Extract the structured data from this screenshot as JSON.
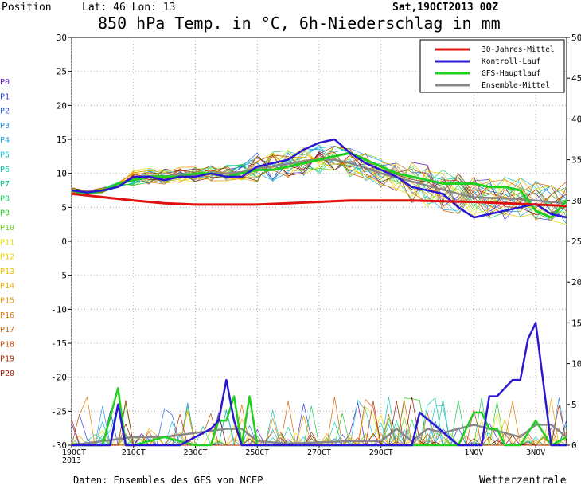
{
  "header": {
    "position_label": "Position",
    "lat_lon": "Lat: 46 Lon: 13",
    "run_date": "Sat,19OCT2013 00Z",
    "title": "850 hPa Temp. in °C, 6h-Niederschlag in mm"
  },
  "footer": {
    "source": "Daten: Ensembles des GFS von NCEP",
    "brand": "Wetterzentrale"
  },
  "member_labels": [
    {
      "label": "P0",
      "color": "#5a18c8"
    },
    {
      "label": "P1",
      "color": "#2f3fe0"
    },
    {
      "label": "P2",
      "color": "#2a60e6"
    },
    {
      "label": "P3",
      "color": "#2a8ee8"
    },
    {
      "label": "P4",
      "color": "#1ea8e0"
    },
    {
      "label": "P5",
      "color": "#16c0d8"
    },
    {
      "label": "P6",
      "color": "#12c8b0"
    },
    {
      "label": "P7",
      "color": "#12c890"
    },
    {
      "label": "P8",
      "color": "#1ccc5c"
    },
    {
      "label": "P9",
      "color": "#28c828"
    },
    {
      "label": "P10",
      "color": "#6ed21c"
    },
    {
      "label": "P11",
      "color": "#e8e000"
    },
    {
      "label": "P12",
      "color": "#f0d000"
    },
    {
      "label": "P13",
      "color": "#f0c000"
    },
    {
      "label": "P14",
      "color": "#f0ac00"
    },
    {
      "label": "P15",
      "color": "#ec9800"
    },
    {
      "label": "P16",
      "color": "#e07e00"
    },
    {
      "label": "P17",
      "color": "#d86400"
    },
    {
      "label": "P18",
      "color": "#c84600"
    },
    {
      "label": "P19",
      "color": "#b02c00"
    },
    {
      "label": "P20",
      "color": "#981800"
    }
  ],
  "chart_data": {
    "type": "line",
    "x_ticks": [
      "19OCT\n2013",
      "21OCT",
      "23OCT",
      "25OCT",
      "27OCT",
      "29OCT",
      "1NOV",
      "3NOV"
    ],
    "x_tick_hours": [
      0,
      48,
      96,
      144,
      192,
      240,
      312,
      360
    ],
    "x_range_hours": [
      0,
      384
    ],
    "y_left": {
      "range": [
        -30,
        30
      ],
      "ticks": [
        -30,
        -25,
        -20,
        -15,
        -10,
        -5,
        0,
        5,
        10,
        15,
        20,
        25,
        30
      ],
      "unit": "°C"
    },
    "y_right": {
      "range": [
        0,
        50
      ],
      "ticks": [
        0,
        5,
        10,
        15,
        20,
        25,
        30,
        35,
        40,
        45,
        50
      ],
      "unit": "mm"
    },
    "grid": true,
    "legend_position": "top-right",
    "legend": [
      {
        "label": "30-Jahres-Mittel",
        "color": "#e01010"
      },
      {
        "label": "Kontroll-Lauf",
        "color": "#2a18d0"
      },
      {
        "label": "GFS-Hauptlauf",
        "color": "#20d020"
      },
      {
        "label": "Ensemble-Mittel",
        "color": "#888888"
      }
    ],
    "temperature": {
      "climate_mean": {
        "x": [
          0,
          24,
          48,
          72,
          96,
          120,
          144,
          168,
          192,
          216,
          240,
          264,
          288,
          312,
          336,
          360,
          384
        ],
        "y": [
          7,
          6.5,
          6,
          5.6,
          5.4,
          5.4,
          5.4,
          5.6,
          5.8,
          6.0,
          6.0,
          6.0,
          5.9,
          5.8,
          5.6,
          5.4,
          5.2
        ]
      },
      "control": {
        "x": [
          0,
          12,
          24,
          36,
          48,
          60,
          72,
          84,
          96,
          108,
          120,
          132,
          144,
          156,
          168,
          180,
          192,
          204,
          216,
          228,
          240,
          252,
          264,
          276,
          288,
          300,
          312,
          324,
          336,
          348,
          360,
          372,
          384
        ],
        "y": [
          7.5,
          7.2,
          7.5,
          8,
          9.5,
          9.5,
          9,
          9.5,
          9.5,
          10,
          9.5,
          9.5,
          11,
          11.5,
          12,
          13.5,
          14.5,
          15,
          13,
          11.5,
          10.5,
          9.5,
          8,
          7.5,
          7,
          5,
          3.5,
          4,
          4.5,
          5,
          5.5,
          4,
          3.5
        ]
      },
      "main_run": {
        "x": [
          0,
          12,
          24,
          36,
          48,
          60,
          72,
          84,
          96,
          108,
          120,
          132,
          144,
          156,
          168,
          180,
          192,
          204,
          216,
          228,
          240,
          252,
          264,
          276,
          288,
          300,
          312,
          324,
          336,
          348,
          360,
          372,
          384
        ],
        "y": [
          7.5,
          7.0,
          7.5,
          8.5,
          9,
          9.5,
          9.5,
          9.5,
          10,
          10,
          9.5,
          10,
          10.5,
          10.5,
          11,
          11.5,
          12,
          12.5,
          13,
          12,
          11,
          10,
          9.5,
          9,
          8.5,
          8.5,
          8.5,
          8,
          8,
          7.5,
          4.5,
          3.5,
          6
        ]
      },
      "ensemble_mean": {
        "x": [
          0,
          12,
          24,
          36,
          48,
          60,
          72,
          84,
          96,
          108,
          120,
          132,
          144,
          156,
          168,
          180,
          192,
          204,
          216,
          228,
          240,
          252,
          264,
          276,
          288,
          300,
          312,
          324,
          336,
          348,
          360,
          372,
          384
        ],
        "y": [
          7.5,
          7.3,
          7.5,
          8.3,
          9.3,
          9.6,
          9.6,
          9.7,
          9.8,
          10,
          10,
          10.2,
          10.8,
          11,
          11.4,
          11.8,
          12,
          12,
          11.5,
          10.8,
          10,
          9.4,
          8.8,
          8.2,
          7.6,
          7.0,
          6.5,
          6.4,
          6.3,
          6.2,
          6.0,
          5.8,
          5.6
        ]
      }
    },
    "precipitation": {
      "control": {
        "x": [
          0,
          30,
          36,
          42,
          48,
          84,
          108,
          114,
          120,
          126,
          132,
          210,
          264,
          270,
          300,
          318,
          324,
          330,
          336,
          342,
          348,
          354,
          360,
          372,
          384
        ],
        "y": [
          0,
          0,
          5,
          0,
          0,
          0,
          2,
          3,
          8,
          3,
          0,
          0,
          0,
          4,
          0,
          0,
          6,
          6,
          7,
          8,
          8,
          13,
          15,
          0,
          0
        ]
      },
      "main_run": {
        "x": [
          0,
          24,
          36,
          42,
          48,
          72,
          96,
          108,
          114,
          120,
          126,
          132,
          138,
          144,
          234,
          300,
          312,
          318,
          324,
          330,
          336,
          348,
          360,
          372,
          384
        ],
        "y": [
          0,
          0,
          7,
          0,
          0,
          1,
          0,
          0,
          3,
          3,
          6,
          0,
          6,
          0,
          0,
          0,
          4,
          4,
          2,
          2,
          0,
          0,
          3,
          0,
          1
        ]
      },
      "ensemble_mean": {
        "x": [
          0,
          48,
          72,
          96,
          120,
          132,
          144,
          168,
          216,
          240,
          252,
          264,
          276,
          288,
          300,
          312,
          324,
          336,
          348,
          360,
          372,
          384
        ],
        "y": [
          0,
          1,
          1,
          1.5,
          2,
          2,
          0.5,
          0.2,
          0.5,
          0.5,
          2,
          0.5,
          2,
          1.5,
          2,
          2.5,
          2,
          1.5,
          1,
          2.5,
          2.5,
          1
        ]
      }
    }
  }
}
